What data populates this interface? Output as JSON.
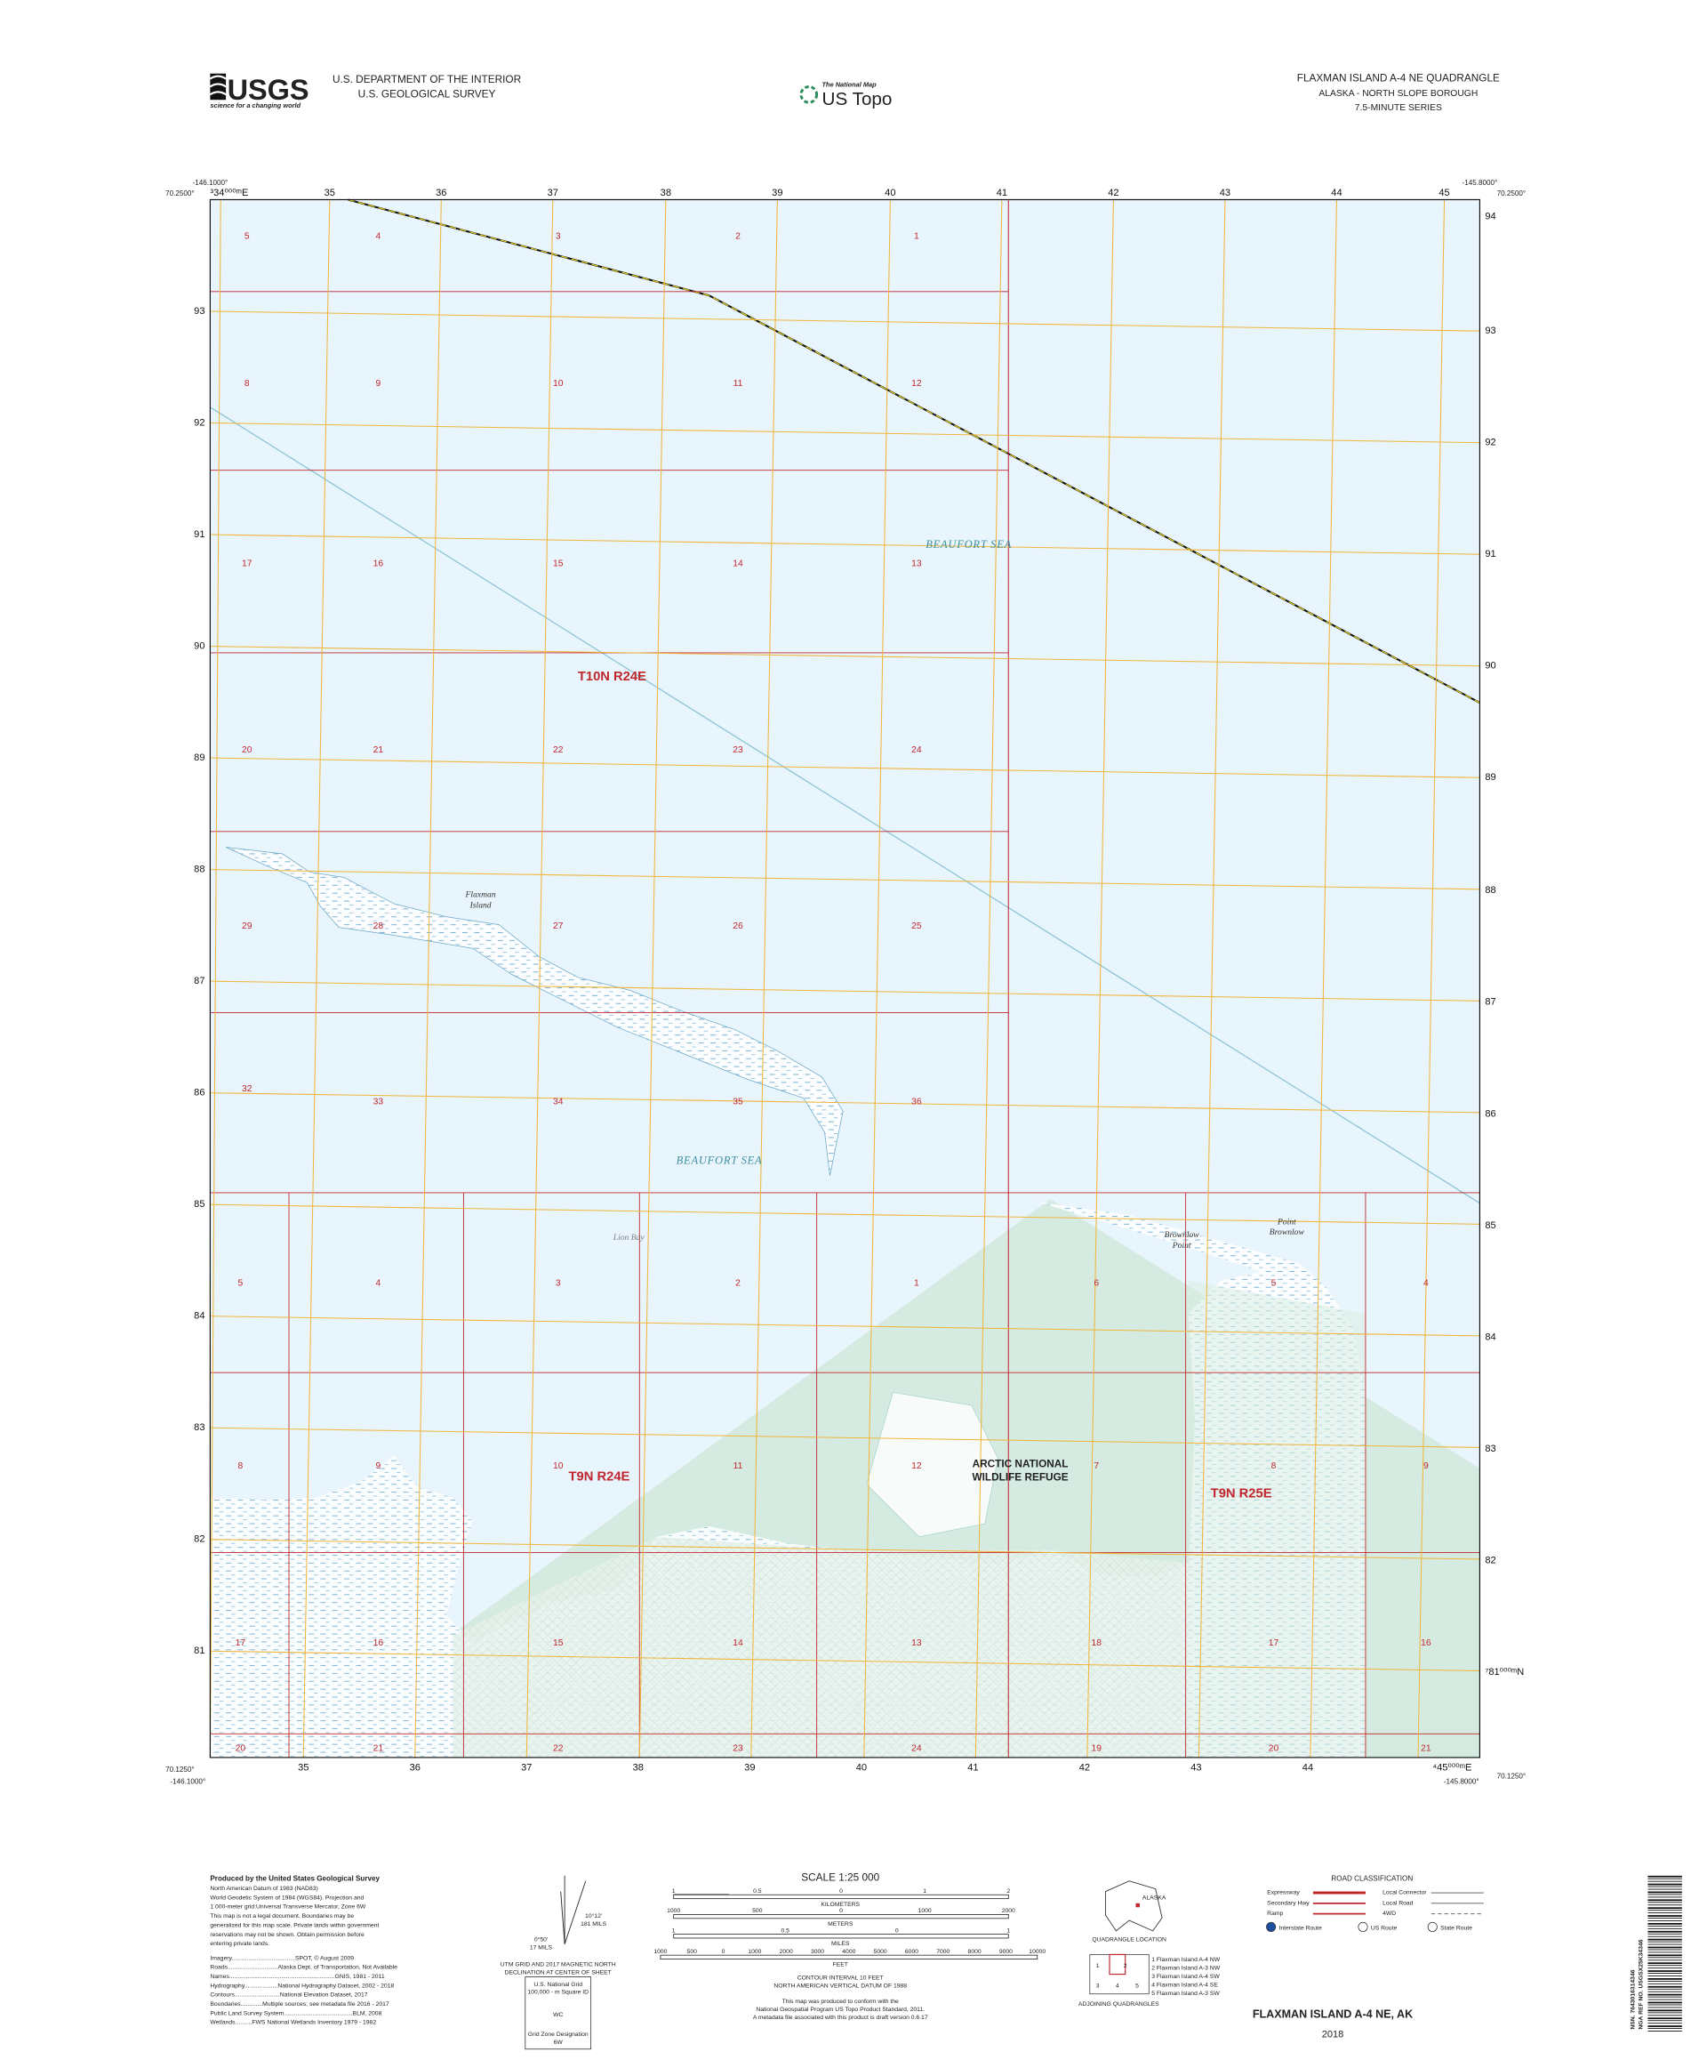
{
  "header": {
    "usgs_logo": "USGS",
    "usgs_tagline": "science for a changing world",
    "agency_line1": "U.S. DEPARTMENT OF THE INTERIOR",
    "agency_line2": "U.S. GEOLOGICAL SURVEY",
    "national_map": "The National Map",
    "us_topo": "US Topo",
    "quad_title": "FLAXMAN ISLAND A-4 NE QUADRANGLE",
    "state_borough": "ALASKA - NORTH SLOPE BOROUGH",
    "series": "7.5-MINUTE SERIES"
  },
  "map": {
    "corners": {
      "nw_lon": "-146.1000°",
      "nw_lat": "70.2500°",
      "ne_lon": "-145.8000°",
      "ne_lat": "70.2500°",
      "sw_lat": "70.1250°",
      "sw_lon": "-146.1000°",
      "se_lon": "-145.8000°",
      "se_lat": "70.1250°"
    },
    "eastings_top": [
      "³34⁰⁰⁰ᵐE",
      "35",
      "36",
      "37",
      "38",
      "39",
      "40",
      "41",
      "42",
      "43",
      "44",
      "45"
    ],
    "eastings_bottom": [
      "35",
      "36",
      "37",
      "38",
      "39",
      "40",
      "41",
      "42",
      "43",
      "44",
      "⁴45⁰⁰⁰ᵐE"
    ],
    "northings_left": [
      "93",
      "92",
      "91",
      "90",
      "89",
      "88",
      "87",
      "86",
      "85",
      "84",
      "83",
      "82",
      "81"
    ],
    "northings_right": [
      "94",
      "93",
      "92",
      "91",
      "90",
      "89",
      "88",
      "87",
      "86",
      "85",
      "84",
      "83",
      "82",
      "⁷81⁰⁰⁰ᵐN"
    ],
    "sections": [
      "5",
      "4",
      "3",
      "2",
      "1",
      "8",
      "9",
      "10",
      "11",
      "12",
      "17",
      "16",
      "15",
      "14",
      "13",
      "20",
      "21",
      "22",
      "23",
      "24",
      "29",
      "28",
      "27",
      "26",
      "25",
      "32",
      "33",
      "34",
      "35",
      "36",
      "5",
      "4",
      "3",
      "2",
      "1",
      "6",
      "5",
      "4",
      "8",
      "9",
      "10",
      "11",
      "12",
      "7",
      "8",
      "9",
      "17",
      "16",
      "15",
      "14",
      "13",
      "18",
      "17",
      "16",
      "20",
      "21",
      "22",
      "23",
      "24",
      "19",
      "20",
      "21"
    ],
    "townships": [
      "T10N R24E",
      "T9N R24E",
      "T9N R25E"
    ],
    "water_names": [
      "BEAUFORT SEA",
      "BEAUFORT SEA",
      "Lion Bay"
    ],
    "island_name": [
      "Flaxman",
      "Island"
    ],
    "brownlow_point": [
      "Brownlow",
      "Point"
    ],
    "point_brownlow": [
      "Point",
      "Brownlow"
    ],
    "refuge": [
      "ARCTIC NATIONAL",
      "WILDLIFE REFUGE"
    ]
  },
  "footer": {
    "credits": [
      "Produced by the United States Geological Survey",
      "North American Datum of 1983 (NAD83)",
      "World Geodetic System of 1984 (WGS84). Projection and",
      "1 000-meter grid:Universal Transverse Mercator, Zone 6W",
      "This map is not a legal document. Boundaries may be",
      "generalized for this map scale. Private lands within government",
      "reservations may not be shown. Obtain permission before",
      "entering private lands.",
      "Imagery......................................SPOT, © August 2009",
      "Roads..............................Alaska Dept. of Transportation, Not Available",
      "Names...............................................................GNIS, 1981 - 2011",
      "Hydrography....................National Hydrography Dataset, 2002 - 2018",
      "Contours...........................National Elevation Dataset, 2017",
      "Boundaries.............Multiple sources; see metadata file 2016 - 2017",
      "Public Land Survey System.........................................BLM, 2008",
      "Wetlands..........FWS National Wetlands Inventory 1979 - 1982"
    ],
    "declination": [
      "0°50′",
      "17 MILS",
      "10°12′",
      "181 MILS",
      "UTM GRID AND 2017 MAGNETIC NORTH",
      "DECLINATION AT CENTER OF SHEET"
    ],
    "grid_zone": [
      "U.S. National Grid",
      "100,000 - m Square ID",
      "WC",
      "Grid Zone Designation",
      "6W"
    ],
    "scale_title": "SCALE 1:25 000",
    "km_label": "KILOMETERS",
    "km_ticks": [
      "1",
      "0.5",
      "0",
      "1",
      "2"
    ],
    "m_label": "METERS",
    "m_ticks": [
      "1000",
      "500",
      "0",
      "1000",
      "2000"
    ],
    "mi_label": "MILES",
    "mi_ticks": [
      "1",
      "0.5",
      "0",
      "1"
    ],
    "ft_label": "FEET",
    "ft_ticks": [
      "1000",
      "500",
      "0",
      "1000",
      "2000",
      "3000",
      "4000",
      "5000",
      "6000",
      "7000",
      "8000",
      "9000",
      "10000"
    ],
    "contour": [
      "CONTOUR INTERVAL 10 FEET",
      "NORTH AMERICAN VERTICAL DATUM OF 1988"
    ],
    "standard": [
      "This map was produced to conform with the",
      "National Geospatial Program US Topo Product Standard, 2011.",
      "A metadata file associated with this product is draft version 0.6.17"
    ],
    "alaska_label": "ALASKA",
    "quad_location": "QUADRANGLE LOCATION",
    "adjoining_numbers": [
      "1",
      "2",
      "3",
      "4",
      "5"
    ],
    "adjoining_label": "ADJOINING QUADRANGLES",
    "adjoining_list": [
      "1 Flaxman Island A-4 NW",
      "2 Flaxman Island A-3 NW",
      "3 Flaxman Island A-4 SW",
      "4 Flaxman Island A-4 SE",
      "5 Flaxman Island A-3 SW"
    ],
    "road_title": "ROAD CLASSIFICATION",
    "road_left": [
      "Expressway",
      "Secondary Hwy",
      "Ramp"
    ],
    "road_right": [
      "Local Connector",
      "Local Road",
      "4WD"
    ],
    "route_types": [
      "Interstate Route",
      "US Route",
      "State Route"
    ],
    "sheet_title": "FLAXMAN ISLAND A-4 NE,  AK",
    "year": "2018",
    "barcode_text": [
      "NSN. 7643016314346",
      "NGA REF NO. USGSX25K34346"
    ]
  }
}
